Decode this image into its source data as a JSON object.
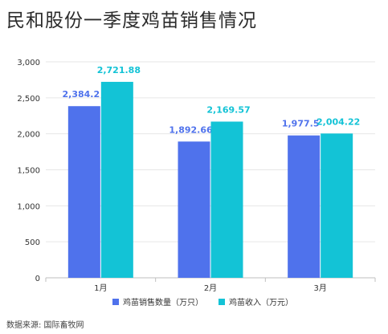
{
  "title": "民和股份一季度鸡苗销售情况",
  "source": "数据来源: 国际畜牧网",
  "chart_data": {
    "type": "bar",
    "categories": [
      "1月",
      "2月",
      "3月"
    ],
    "series": [
      {
        "name": "鸡苗销售数量（万只）",
        "values": [
          2384.2,
          1892.66,
          1977.5
        ],
        "labels": [
          "2,384.2",
          "1,892.66",
          "1,977.5"
        ],
        "color": "#4f72ec",
        "label_color": "#4f72ec"
      },
      {
        "name": "鸡苗收入（万元）",
        "values": [
          2721.88,
          2169.57,
          2004.22
        ],
        "labels": [
          "2,721.88",
          "2,169.57",
          "2,004.22"
        ],
        "color": "#13c3d6",
        "label_color": "#13c3d6"
      }
    ],
    "ylim": [
      0,
      3000
    ],
    "yticks": [
      0,
      500,
      1000,
      1500,
      2000,
      2500,
      3000
    ],
    "ytick_labels": [
      "0",
      "500",
      "1,000",
      "1,500",
      "2,000",
      "2,500",
      "3,000"
    ],
    "grid": true,
    "legend": "bottom-center"
  }
}
